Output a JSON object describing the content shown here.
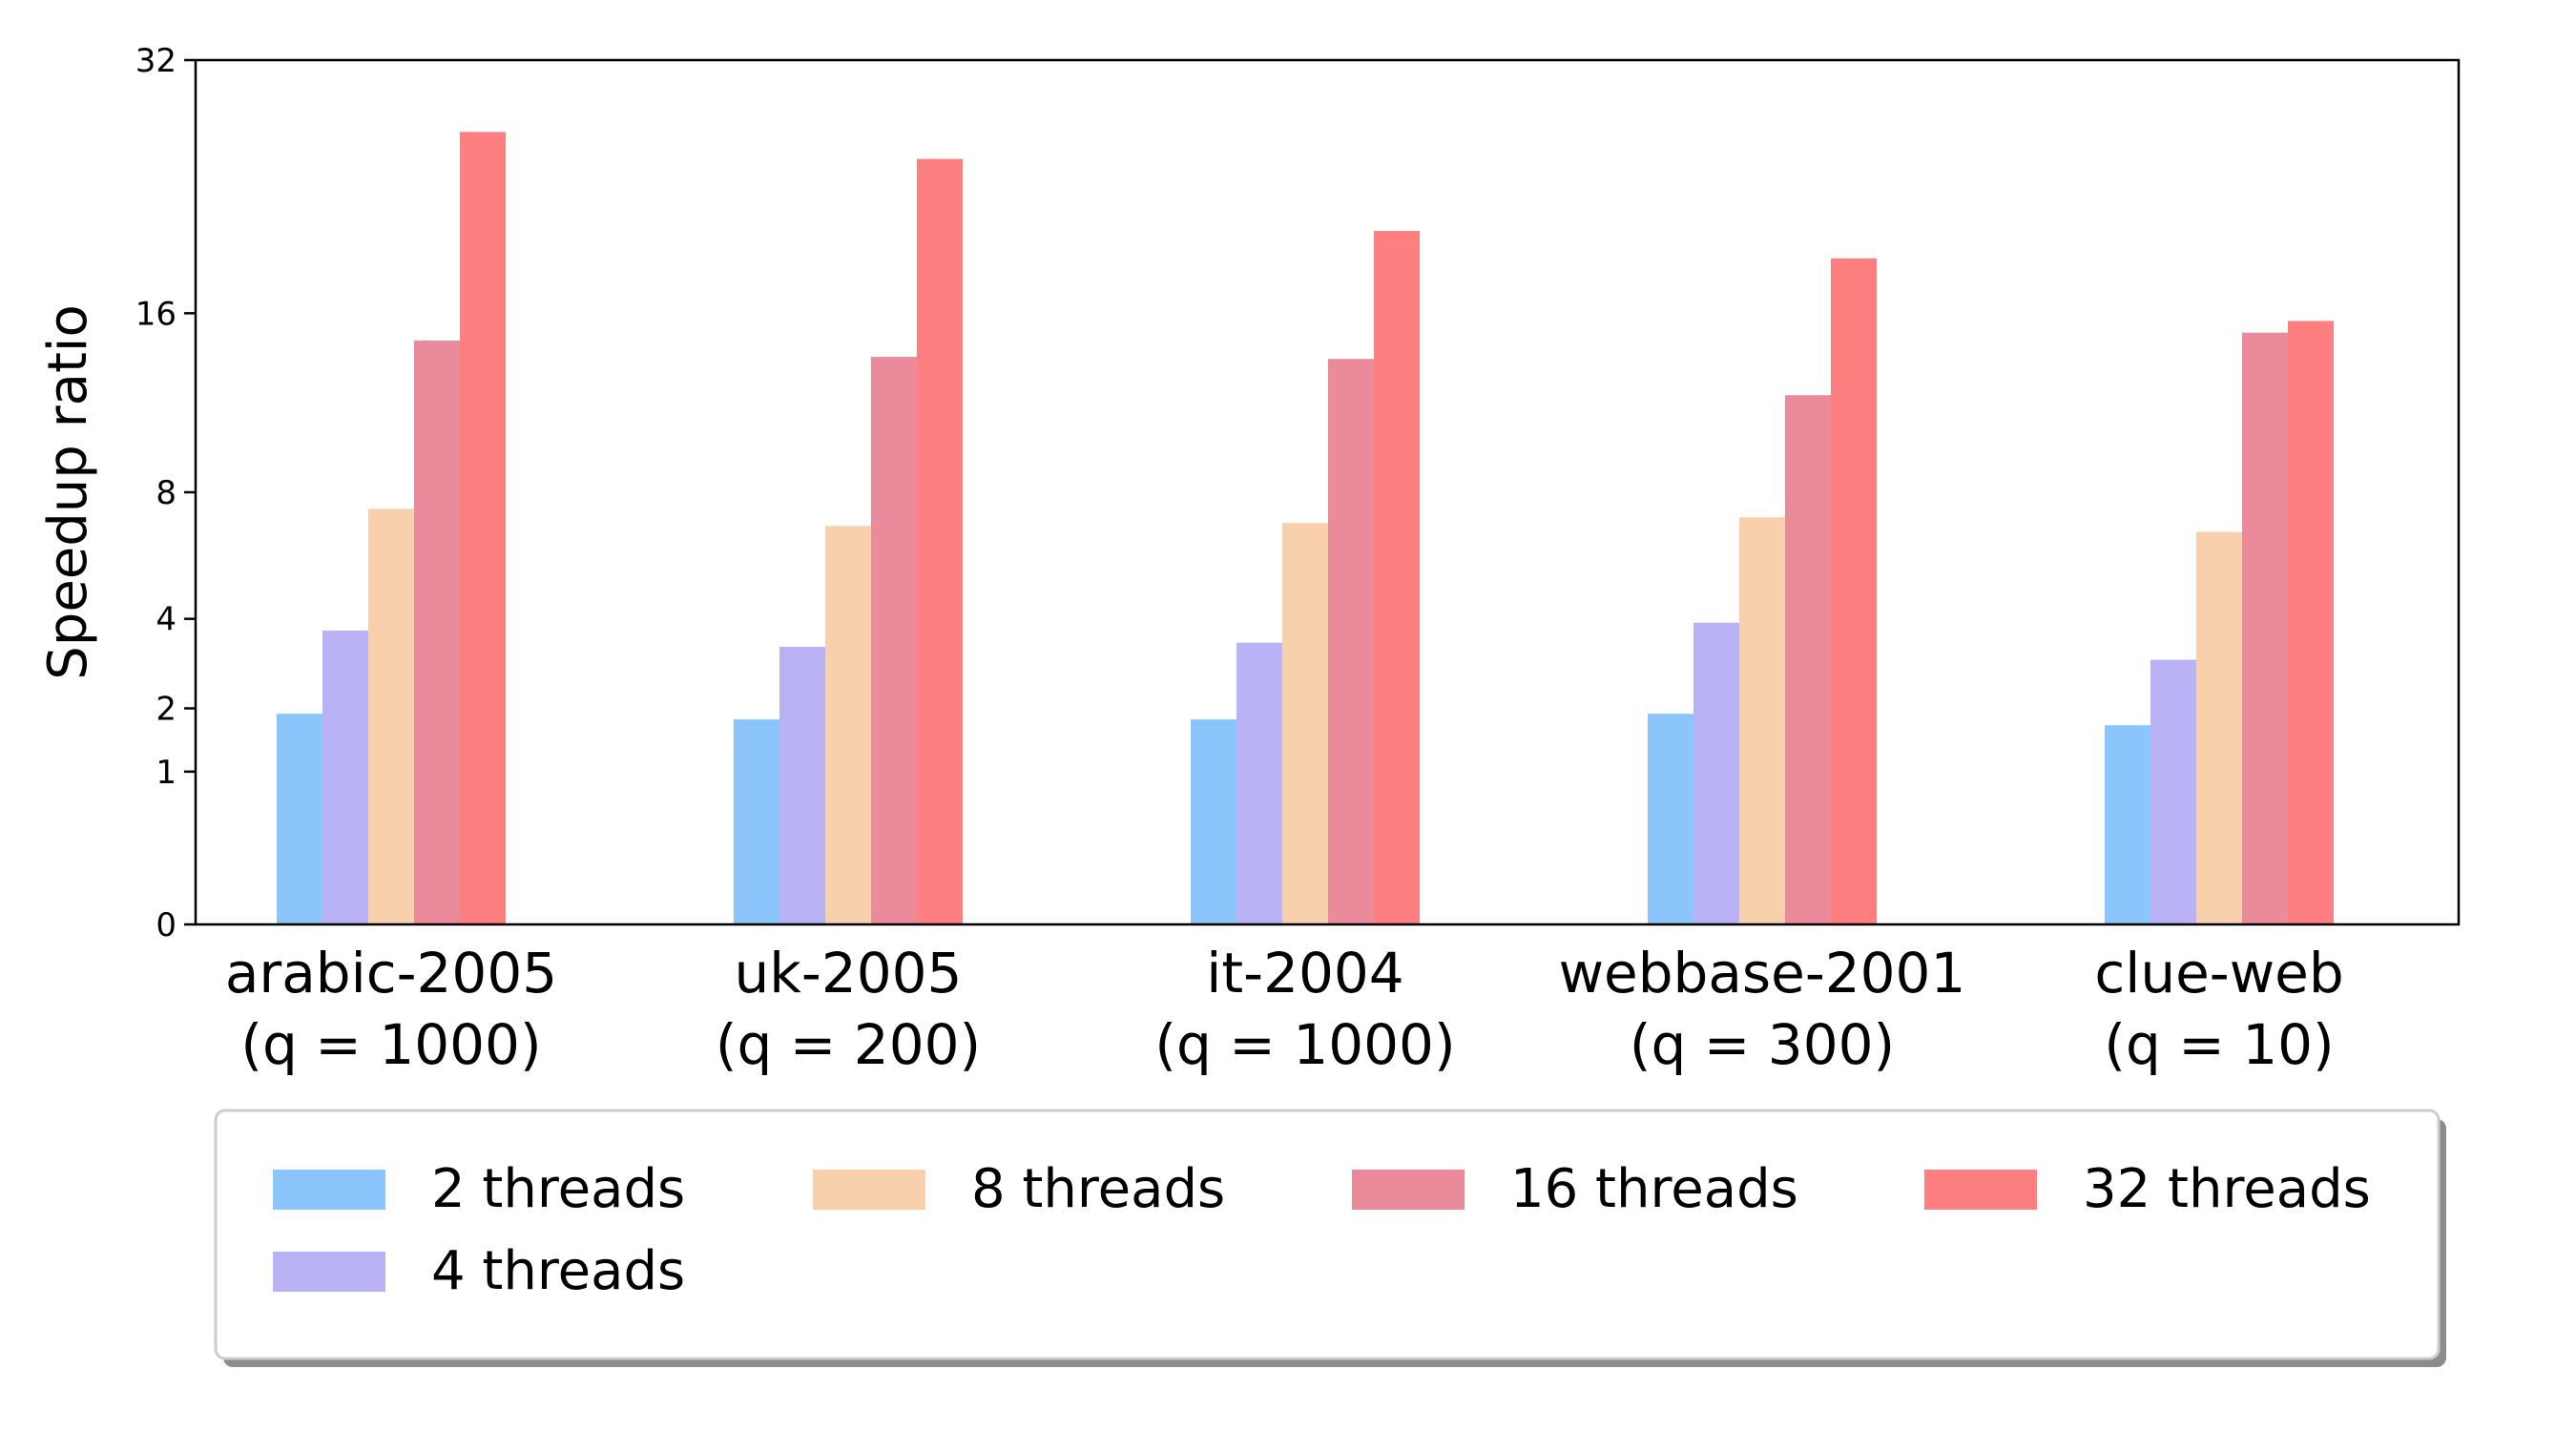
{
  "chart_data": {
    "type": "bar",
    "ylabel": "Speedup ratio",
    "xlabel": "",
    "ylim": [
      0,
      32
    ],
    "yticks": [
      0,
      1,
      2,
      4,
      8,
      16,
      32
    ],
    "y_scale": "square-root",
    "categories": [
      {
        "name": "arabic-2005",
        "q": "(q = 1000)"
      },
      {
        "name": "uk-2005",
        "q": "(q = 200)"
      },
      {
        "name": "it-2004",
        "q": "(q = 1000)"
      },
      {
        "name": "webbase-2001",
        "q": "(q = 300)"
      },
      {
        "name": "clue-web",
        "q": "(q = 10)"
      }
    ],
    "series": [
      {
        "name": "2 threads",
        "color": "#8cc5fb",
        "values": [
          1.9,
          1.8,
          1.8,
          1.9,
          1.7
        ]
      },
      {
        "name": "4 threads",
        "color": "#b9b2f5",
        "values": [
          3.7,
          3.3,
          3.4,
          3.9,
          3.0
        ]
      },
      {
        "name": "8 threads",
        "color": "#f8d0ac",
        "values": [
          7.4,
          6.8,
          6.9,
          7.1,
          6.6
        ]
      },
      {
        "name": "16 threads",
        "color": "#ea8a9b",
        "values": [
          14.6,
          13.8,
          13.7,
          12.0,
          15.0
        ]
      },
      {
        "name": "32 threads",
        "color": "#fe7f7f",
        "values": [
          26.9,
          25.1,
          20.6,
          19.0,
          15.6
        ]
      }
    ],
    "legend": {
      "placement": "bottom",
      "columns": 4
    },
    "grid": false
  }
}
